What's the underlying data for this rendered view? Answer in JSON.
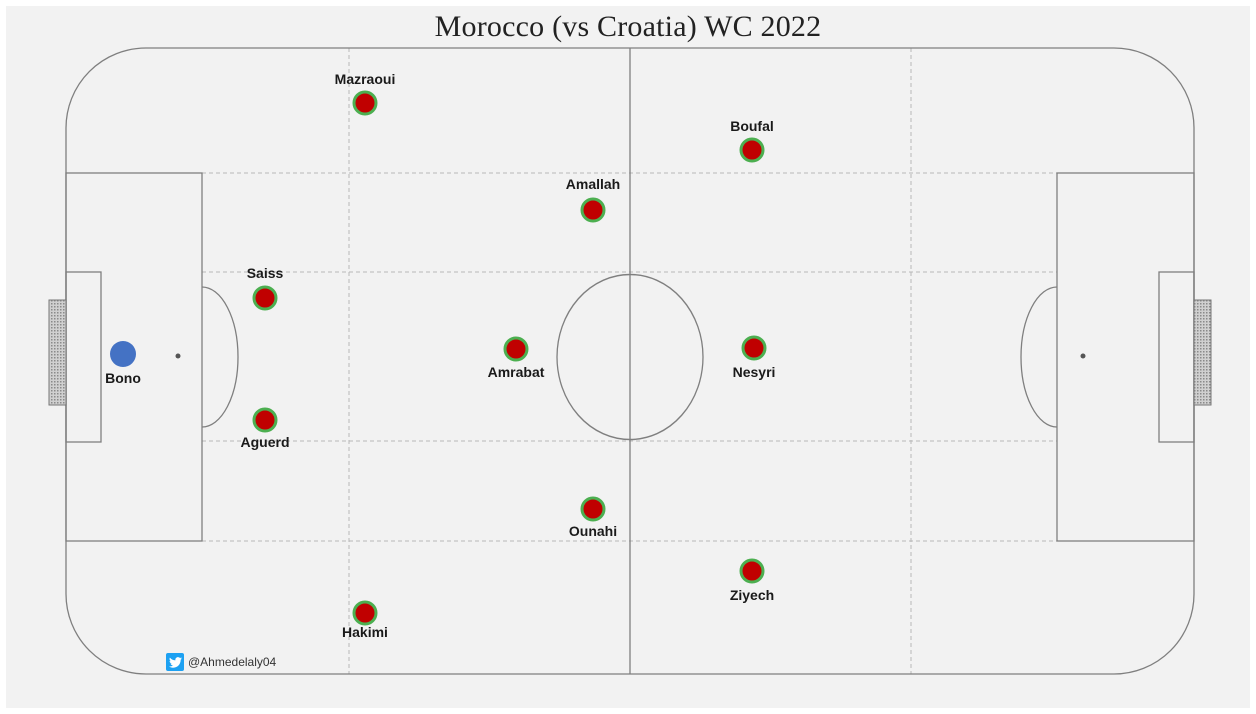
{
  "title": "Morocco (vs Croatia) WC 2022",
  "credit": {
    "handle": "@Ahmedelaly04",
    "icon": "twitter-bird-icon"
  },
  "colors": {
    "outfield_fill": "#c00000",
    "outfield_ring": "#4caf50",
    "goalkeeper_fill": "#4472c4",
    "pitch_lines": "#7f7f7f",
    "guide_lines": "#b8b8b8",
    "background": "#f2f2f2"
  },
  "players": [
    {
      "id": "bono",
      "name": "Bono",
      "role": "goalkeeper"
    },
    {
      "id": "mazraoui",
      "name": "Mazraoui",
      "role": "outfield"
    },
    {
      "id": "saiss",
      "name": "Saiss",
      "role": "outfield"
    },
    {
      "id": "aguerd",
      "name": "Aguerd",
      "role": "outfield"
    },
    {
      "id": "hakimi",
      "name": "Hakimi",
      "role": "outfield"
    },
    {
      "id": "amallah",
      "name": "Amallah",
      "role": "outfield"
    },
    {
      "id": "amrabat",
      "name": "Amrabat",
      "role": "outfield"
    },
    {
      "id": "ounahi",
      "name": "Ounahi",
      "role": "outfield"
    },
    {
      "id": "boufal",
      "name": "Boufal",
      "role": "outfield"
    },
    {
      "id": "nesyri",
      "name": "Nesyri",
      "role": "outfield"
    },
    {
      "id": "ziyech",
      "name": "Ziyech",
      "role": "outfield"
    }
  ]
}
